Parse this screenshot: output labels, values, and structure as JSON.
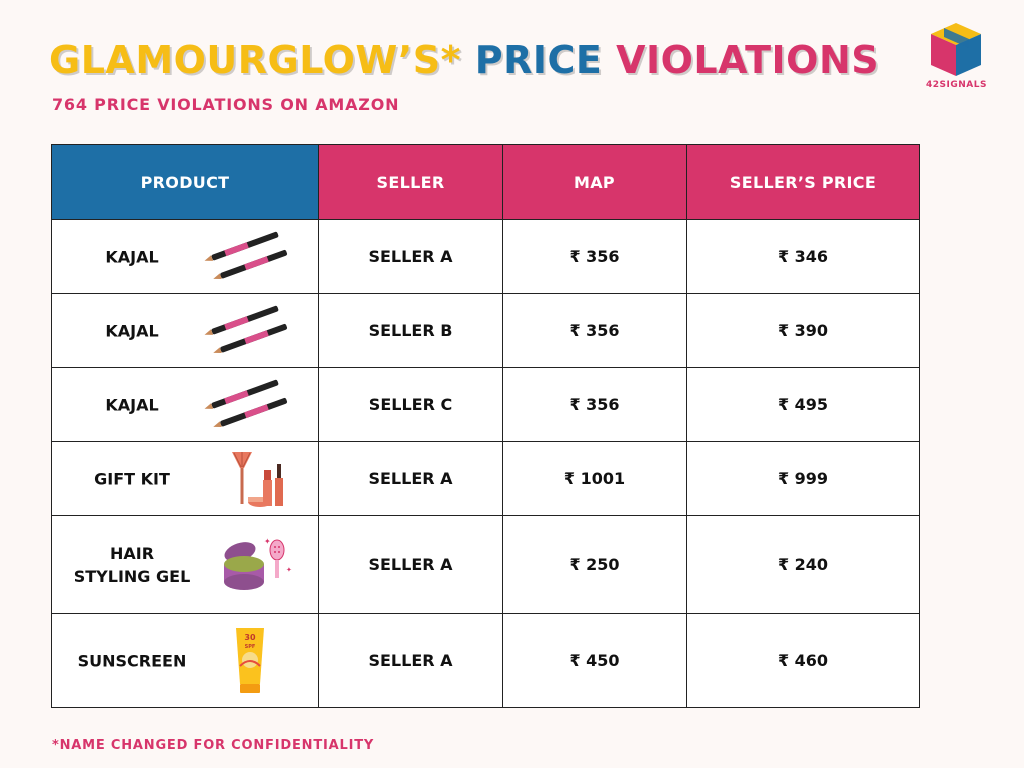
{
  "title": {
    "part1": "GLAMOURGLOW’S*",
    "part2": "PRICE",
    "part3": "VIOLATIONS"
  },
  "subtitle": "764 PRICE VIOLATIONS ON AMAZON",
  "logo": {
    "text": "42SIGNALS",
    "colors": {
      "left_face": "#d7356b",
      "right_face": "#1e6fa6",
      "top_face": "#f6bd16"
    }
  },
  "table": {
    "headers": {
      "product": "PRODUCT",
      "seller": "SELLER",
      "map": "MAP",
      "sellers_price": "SELLER’S PRICE"
    },
    "rows": [
      {
        "product": "KAJAL",
        "icon": "kajal-pencils-icon",
        "seller": "SELLER A",
        "map": "₹ 356",
        "sellers_price": "₹ 346"
      },
      {
        "product": "KAJAL",
        "icon": "kajal-pencils-icon",
        "seller": "SELLER B",
        "map": "₹ 356",
        "sellers_price": "₹ 390"
      },
      {
        "product": "KAJAL",
        "icon": "kajal-pencils-icon",
        "seller": "SELLER C",
        "map": "₹ 356",
        "sellers_price": "₹ 495"
      },
      {
        "product": "GIFT KIT",
        "icon": "makeup-kit-icon",
        "seller": "SELLER A",
        "map": "₹ 1001",
        "sellers_price": "₹ 999"
      },
      {
        "product": "HAIR STYLING GEL",
        "icon": "hair-gel-jar-icon",
        "seller": "SELLER A",
        "map": "₹ 250",
        "sellers_price": "₹ 240"
      },
      {
        "product": "SUNSCREEN",
        "icon": "sunscreen-tube-icon",
        "seller": "SELLER A",
        "map": "₹ 450",
        "sellers_price": "₹ 460"
      }
    ]
  },
  "footnote": "*NAME CHANGED FOR CONFIDENTIALITY",
  "colors": {
    "yellow": "#f6bd16",
    "blue": "#1e6fa6",
    "pink": "#d7356b",
    "background": "#fdf8f6"
  }
}
